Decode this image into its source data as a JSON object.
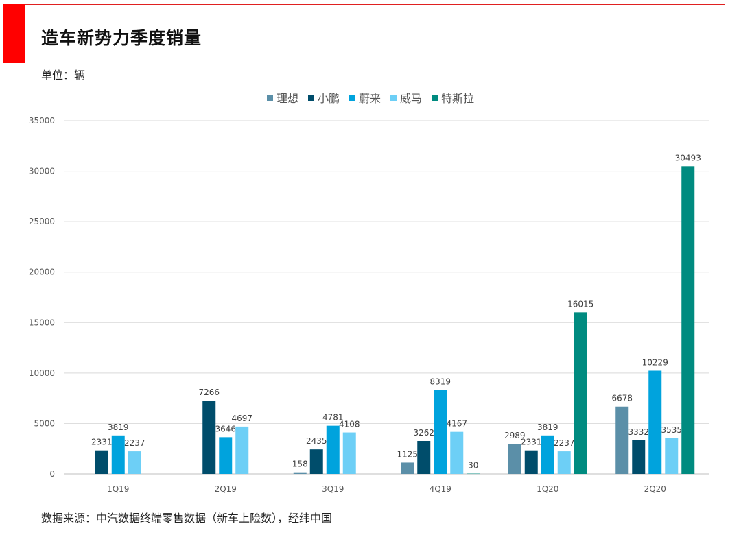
{
  "page": {
    "title": "造车新势力季度销量",
    "unit": "单位：辆",
    "source": "数据来源：中汽数据终端零售数据（新车上险数），经纬中国"
  },
  "colors": {
    "accent": "#ff0000"
  },
  "chart_data": {
    "type": "bar",
    "categories": [
      "1Q19",
      "2Q19",
      "3Q19",
      "4Q19",
      "1Q20",
      "2Q20"
    ],
    "ylim": [
      0,
      35000
    ],
    "yticks": [
      0,
      5000,
      10000,
      15000,
      20000,
      25000,
      30000,
      35000
    ],
    "grid": true,
    "legend": "top-center",
    "series": [
      {
        "name": "理想",
        "color": "#5b8fa8",
        "values": [
          null,
          null,
          158,
          1125,
          2989,
          6678
        ]
      },
      {
        "name": "小鹏",
        "color": "#004d6b",
        "values": [
          2331,
          7266,
          2435,
          3262,
          2331,
          3332
        ]
      },
      {
        "name": "蔚来",
        "color": "#00a3dd",
        "values": [
          3819,
          3646,
          4781,
          8319,
          3819,
          10229
        ]
      },
      {
        "name": "威马",
        "color": "#6dcff6",
        "values": [
          2237,
          4697,
          4108,
          4167,
          2237,
          3535
        ]
      },
      {
        "name": "特斯拉",
        "color": "#008b80",
        "values": [
          null,
          null,
          null,
          30,
          16015,
          30493
        ]
      }
    ]
  }
}
